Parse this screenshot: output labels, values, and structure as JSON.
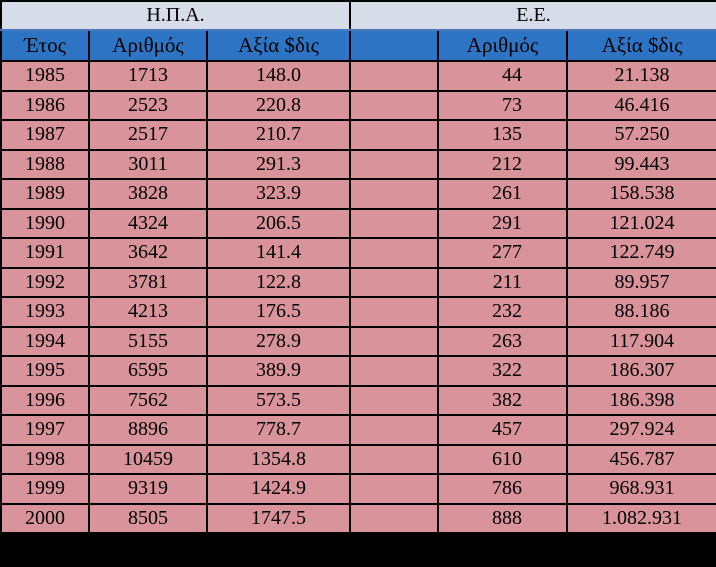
{
  "groups": {
    "usa": "Η.Π.Α.",
    "eu": "Ε.Ε."
  },
  "headers": {
    "year": "Έτος",
    "usa_count": "Αριθμός",
    "usa_value": "Αξία $δις",
    "eu_count": "Αριθμός",
    "eu_value": "Αξία $δις"
  },
  "rows": [
    {
      "year": "1985",
      "usa_count": "1713",
      "usa_value": "148.0",
      "eu_count": "44",
      "eu_value": "21.138"
    },
    {
      "year": "1986",
      "usa_count": "2523",
      "usa_value": "220.8",
      "eu_count": "73",
      "eu_value": "46.416"
    },
    {
      "year": "1987",
      "usa_count": "2517",
      "usa_value": "210.7",
      "eu_count": "135",
      "eu_value": "57.250"
    },
    {
      "year": "1988",
      "usa_count": "3011",
      "usa_value": "291.3",
      "eu_count": "212",
      "eu_value": "99.443"
    },
    {
      "year": "1989",
      "usa_count": "3828",
      "usa_value": "323.9",
      "eu_count": "261",
      "eu_value": "158.538"
    },
    {
      "year": "1990",
      "usa_count": "4324",
      "usa_value": "206.5",
      "eu_count": "291",
      "eu_value": "121.024"
    },
    {
      "year": "1991",
      "usa_count": "3642",
      "usa_value": "141.4",
      "eu_count": "277",
      "eu_value": "122.749"
    },
    {
      "year": "1992",
      "usa_count": "3781",
      "usa_value": "122.8",
      "eu_count": "211",
      "eu_value": "89.957"
    },
    {
      "year": "1993",
      "usa_count": "4213",
      "usa_value": "176.5",
      "eu_count": "232",
      "eu_value": "88.186"
    },
    {
      "year": "1994",
      "usa_count": "5155",
      "usa_value": "278.9",
      "eu_count": "263",
      "eu_value": "117.904"
    },
    {
      "year": "1995",
      "usa_count": "6595",
      "usa_value": "389.9",
      "eu_count": "322",
      "eu_value": "186.307"
    },
    {
      "year": "1996",
      "usa_count": "7562",
      "usa_value": "573.5",
      "eu_count": "382",
      "eu_value": "186.398"
    },
    {
      "year": "1997",
      "usa_count": "8896",
      "usa_value": "778.7",
      "eu_count": "457",
      "eu_value": "297.924"
    },
    {
      "year": "1998",
      "usa_count": "10459",
      "usa_value": "1354.8",
      "eu_count": "610",
      "eu_value": "456.787"
    },
    {
      "year": "1999",
      "usa_count": "9319",
      "usa_value": "1424.9",
      "eu_count": "786",
      "eu_value": "968.931"
    },
    {
      "year": "2000",
      "usa_count": "8505",
      "usa_value": "1747.5",
      "eu_count": "888",
      "eu_value": "1.082.931"
    }
  ]
}
